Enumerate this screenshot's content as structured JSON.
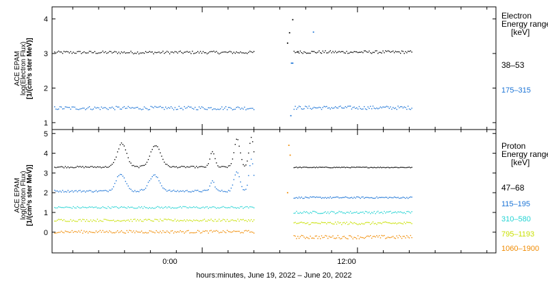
{
  "figure": {
    "xlabel": "hours:minutes, June 19, 2022 – June 20, 2022",
    "x_tick_labels": [
      "0:00",
      "12:00"
    ]
  },
  "chart_data": [
    {
      "type": "scatter",
      "panel": "electron",
      "ylabel_lines": [
        "ACE EPAM",
        "log(Electron Flux)",
        "[1/(cm²s ster MeV)]"
      ],
      "legend_title_lines": [
        "Electron",
        "Energy ranges",
        "[keV]"
      ],
      "x_unit": "hours since 2022-06-19 00:00",
      "xlim": [
        -11.6,
        22.7
      ],
      "ylim": [
        0.8,
        4.35
      ],
      "yticks": [
        1,
        2,
        3,
        4
      ],
      "grid": false,
      "legend_position": "right",
      "series": [
        {
          "name": "38–53",
          "color": "#000000",
          "segments": [
            {
              "x_start": -11.4,
              "x_end": 4.0,
              "level": 3.03,
              "jitter": 0.04,
              "count": 150
            },
            {
              "x_start": 7.1,
              "x_end": 16.2,
              "level": 3.04,
              "jitter": 0.04,
              "count": 95
            }
          ],
          "points": [
            {
              "x": 6.6,
              "y": 3.3
            },
            {
              "x": 6.75,
              "y": 3.6
            },
            {
              "x": 7.0,
              "y": 3.98
            },
            {
              "x": 7.4,
              "y": 3.05
            }
          ]
        },
        {
          "name": "175–315",
          "color": "#1a73d6",
          "segments": [
            {
              "x_start": -11.4,
              "x_end": 4.0,
              "level": 1.42,
              "jitter": 0.05,
              "count": 150
            },
            {
              "x_start": 7.1,
              "x_end": 16.2,
              "level": 1.43,
              "jitter": 0.05,
              "count": 95
            }
          ],
          "points": [
            {
              "x": 6.9,
              "y": 2.72
            },
            {
              "x": 7.0,
              "y": 2.72
            },
            {
              "x": 8.6,
              "y": 3.62
            },
            {
              "x": 6.85,
              "y": 1.2
            }
          ]
        }
      ]
    },
    {
      "type": "scatter",
      "panel": "proton",
      "ylabel_lines": [
        "ACE EPAM",
        "log(Proton Flux)",
        "[1/(cm²s ster MeV)]"
      ],
      "legend_title_lines": [
        "Proton",
        "Energy ranges",
        "[keV]"
      ],
      "x_unit": "hours since 2022-06-19 00:00",
      "xlim": [
        -11.6,
        22.7
      ],
      "ylim": [
        -1.05,
        5.2
      ],
      "yticks": [
        0,
        1,
        2,
        3,
        4,
        5
      ],
      "grid": false,
      "legend_position": "right",
      "series": [
        {
          "name": "47–68",
          "color": "#000000",
          "segments": [
            {
              "x_start": -11.4,
              "x_end": 4.0,
              "level": 3.3,
              "jitter": 0.04,
              "count": 150
            },
            {
              "x_start": 7.1,
              "x_end": 16.2,
              "level": 3.28,
              "jitter": 0.02,
              "count": 95
            }
          ],
          "bumps": [
            {
              "x": -6.2,
              "height": 1.2,
              "width": 0.7
            },
            {
              "x": -3.6,
              "height": 1.1,
              "width": 0.8
            },
            {
              "x": 0.8,
              "height": 0.8,
              "width": 0.35
            },
            {
              "x": 2.7,
              "height": 1.4,
              "width": 0.45
            },
            {
              "x": 3.8,
              "height": 1.5,
              "width": 0.35
            }
          ]
        },
        {
          "name": "115–195",
          "color": "#1a73d6",
          "segments": [
            {
              "x_start": -11.4,
              "x_end": 4.0,
              "level": 2.08,
              "jitter": 0.05,
              "count": 150
            },
            {
              "x_start": 7.1,
              "x_end": 16.2,
              "level": 1.75,
              "jitter": 0.04,
              "count": 95
            }
          ],
          "bumps": [
            {
              "x": -6.3,
              "height": 0.9,
              "width": 0.7
            },
            {
              "x": -3.7,
              "height": 0.8,
              "width": 0.8
            },
            {
              "x": 0.8,
              "height": 0.5,
              "width": 0.35
            },
            {
              "x": 2.7,
              "height": 1.0,
              "width": 0.45
            },
            {
              "x": 3.8,
              "height": 1.6,
              "width": 0.35
            }
          ]
        },
        {
          "name": "310–580",
          "color": "#22d3d3",
          "segments": [
            {
              "x_start": -11.4,
              "x_end": 4.0,
              "level": 1.25,
              "jitter": 0.05,
              "count": 150
            },
            {
              "x_start": 7.1,
              "x_end": 16.2,
              "level": 1.0,
              "jitter": 0.06,
              "count": 95
            }
          ]
        },
        {
          "name": "795–1193",
          "color": "#c8e000",
          "segments": [
            {
              "x_start": -11.4,
              "x_end": 4.0,
              "level": 0.6,
              "jitter": 0.06,
              "count": 150
            },
            {
              "x_start": 7.1,
              "x_end": 16.2,
              "level": 0.45,
              "jitter": 0.07,
              "count": 95
            }
          ]
        },
        {
          "name": "1060–1900",
          "color": "#f08a00",
          "segments": [
            {
              "x_start": -11.4,
              "x_end": 4.0,
              "level": 0.02,
              "jitter": 0.07,
              "count": 150
            },
            {
              "x_start": 7.1,
              "x_end": 16.2,
              "level": -0.25,
              "jitter": 0.09,
              "count": 95
            }
          ],
          "points": [
            {
              "x": 6.7,
              "y": 4.4
            },
            {
              "x": 6.8,
              "y": 3.9
            },
            {
              "x": 6.6,
              "y": 2.0
            }
          ]
        }
      ]
    }
  ]
}
